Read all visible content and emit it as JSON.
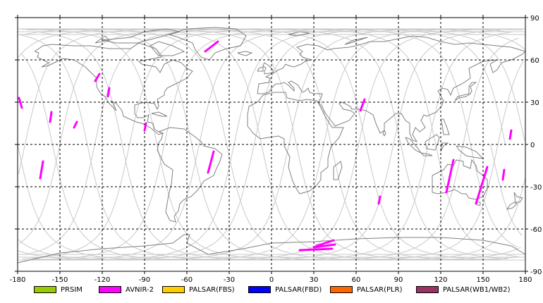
{
  "map": {
    "lon_ticks": [
      "-180",
      "-150",
      "-120",
      "-90",
      "-60",
      "-30",
      "0",
      "30",
      "60",
      "90",
      "120",
      "150",
      "180"
    ],
    "lat_ticks": [
      "90",
      "60",
      "30",
      "0",
      "-30",
      "-60",
      "-90"
    ],
    "lon_range": [
      -180,
      180
    ],
    "lat_range": [
      -90,
      90
    ],
    "graticule": "dashed",
    "orbit_track_color": "#c8c8c8",
    "coastline_color": "#808080"
  },
  "legend": [
    {
      "label": "PRSIM",
      "color": "#99cc00"
    },
    {
      "label": "AVNIR-2",
      "color": "#ff00ff"
    },
    {
      "label": "PALSAR(FBS)",
      "color": "#ffcc00"
    },
    {
      "label": "PALSAR(FBD)",
      "color": "#0000ff"
    },
    {
      "label": "PALSAR(PLR)",
      "color": "#ff6600"
    },
    {
      "label": "PALSAR(WB1/WB2)",
      "color": "#993366"
    }
  ],
  "observations": {
    "sensor": "AVNIR-2",
    "color": "#ff00ff",
    "segments": [
      [
        [
          -179,
          33
        ],
        [
          -177,
          26
        ]
      ],
      [
        [
          -156,
          23
        ],
        [
          -157,
          16
        ]
      ],
      [
        [
          -138,
          16
        ],
        [
          -140,
          12
        ]
      ],
      [
        [
          -122,
          50
        ],
        [
          -125,
          45
        ]
      ],
      [
        [
          -115,
          40
        ],
        [
          -116,
          34
        ]
      ],
      [
        [
          -89,
          15
        ],
        [
          -90,
          10
        ]
      ],
      [
        [
          -47,
          66
        ],
        [
          -38,
          73
        ]
      ],
      [
        [
          -41,
          -5
        ],
        [
          -45,
          -20
        ]
      ],
      [
        [
          -162,
          -12
        ],
        [
          -164,
          -24
        ]
      ],
      [
        [
          66,
          32
        ],
        [
          63,
          24
        ]
      ],
      [
        [
          77,
          -37
        ],
        [
          76,
          -42
        ]
      ],
      [
        [
          129,
          -11
        ],
        [
          124,
          -34
        ]
      ],
      [
        [
          153,
          -16
        ],
        [
          145,
          -42
        ]
      ],
      [
        [
          170,
          10
        ],
        [
          169,
          4
        ]
      ],
      [
        [
          165,
          -18
        ],
        [
          164,
          -25
        ]
      ],
      [
        [
          20,
          -75
        ],
        [
          43,
          -74
        ]
      ],
      [
        [
          32,
          -72
        ],
        [
          44,
          -68
        ]
      ],
      [
        [
          30,
          -73
        ],
        [
          45,
          -71
        ]
      ]
    ]
  }
}
